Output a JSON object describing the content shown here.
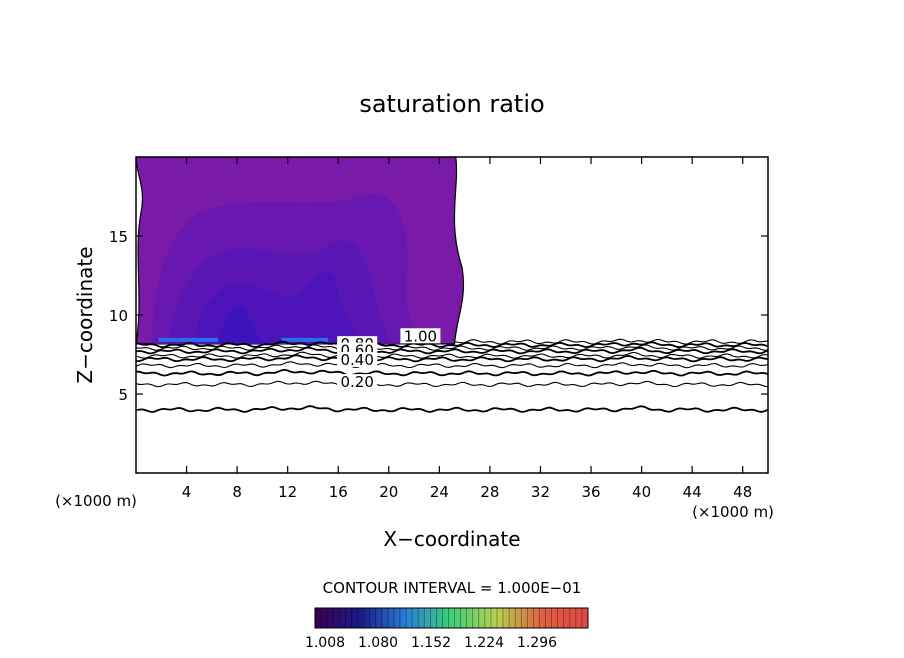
{
  "chart_data": {
    "type": "contour",
    "title": "saturation ratio",
    "xlabel": "X−coordinate",
    "ylabel": "Z−coordinate",
    "x_unit": "(×1000 m)",
    "y_unit": "(×1000 m)",
    "xlim": [
      0,
      50
    ],
    "ylim": [
      0,
      20
    ],
    "x_ticks": [
      4,
      8,
      12,
      16,
      20,
      24,
      28,
      32,
      36,
      40,
      44,
      48
    ],
    "y_ticks": [
      5,
      10,
      15
    ],
    "contour_interval_text": "CONTOUR INTERVAL = 1.000E−01",
    "contour_labels": [
      {
        "text": "1.00",
        "x": 22.5,
        "z": 8.4
      },
      {
        "text": "0.80",
        "x": 17.5,
        "z": 7.9
      },
      {
        "text": "0.60",
        "x": 17.5,
        "z": 7.5
      },
      {
        "text": "0.40",
        "x": 17.5,
        "z": 6.9
      },
      {
        "text": "0.20",
        "x": 17.5,
        "z": 5.5
      }
    ],
    "contour_lines": [
      {
        "level": 1.0,
        "z": 8.3
      },
      {
        "level": 0.9,
        "z": 8.1
      },
      {
        "level": 0.8,
        "z": 7.9
      },
      {
        "level": 0.7,
        "z": 7.7
      },
      {
        "level": 0.6,
        "z": 7.4
      },
      {
        "level": 0.5,
        "z": 7.2
      },
      {
        "level": 0.4,
        "z": 6.8
      },
      {
        "level": 0.3,
        "z": 6.3
      },
      {
        "level": 0.2,
        "z": 5.6
      },
      {
        "level": 0.1,
        "z": 4.0
      }
    ],
    "shaded_region": {
      "x_range": [
        0,
        25.3
      ],
      "z_range": [
        8.3,
        20
      ],
      "min_value": 1.008,
      "max_value": 1.03
    },
    "colorbar": {
      "ticks": [
        "1.008",
        "1.080",
        "1.152",
        "1.224",
        "1.296"
      ],
      "colors": [
        "#3a0052",
        "#1a1a8a",
        "#2a7fd8",
        "#3fcf7a",
        "#b8d050",
        "#e06040",
        "#e04848"
      ]
    },
    "fill_colors": {
      "outer": "#7a1aa8",
      "level2": "#6818b0",
      "level3": "#5a16b4",
      "level4": "#4c14b8",
      "core": "#3e12bc",
      "sat_band": "#2c6cf0"
    },
    "grid": false,
    "legend": "colorbar-bottom"
  }
}
